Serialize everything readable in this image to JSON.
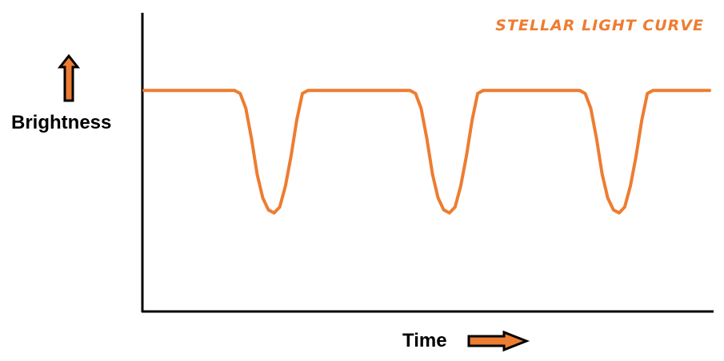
{
  "chart_data": {
    "type": "line",
    "title": "STELLAR LIGHT CURVE",
    "xlabel": "Time",
    "ylabel": "Brightness",
    "grid": false,
    "legend": "none",
    "series": [
      {
        "values": [
          [
            0,
            0.74
          ],
          [
            0.16,
            0.74
          ],
          [
            0.17,
            0.73
          ],
          [
            0.18,
            0.68
          ],
          [
            0.19,
            0.58
          ],
          [
            0.2,
            0.46
          ],
          [
            0.21,
            0.38
          ],
          [
            0.22,
            0.34
          ],
          [
            0.23,
            0.33
          ],
          [
            0.24,
            0.35
          ],
          [
            0.25,
            0.42
          ],
          [
            0.26,
            0.52
          ],
          [
            0.27,
            0.64
          ],
          [
            0.28,
            0.73
          ],
          [
            0.29,
            0.74
          ],
          [
            0.47,
            0.74
          ],
          [
            0.48,
            0.73
          ],
          [
            0.49,
            0.68
          ],
          [
            0.5,
            0.58
          ],
          [
            0.51,
            0.46
          ],
          [
            0.52,
            0.38
          ],
          [
            0.53,
            0.34
          ],
          [
            0.54,
            0.33
          ],
          [
            0.55,
            0.35
          ],
          [
            0.56,
            0.42
          ],
          [
            0.57,
            0.52
          ],
          [
            0.58,
            0.64
          ],
          [
            0.59,
            0.73
          ],
          [
            0.6,
            0.74
          ],
          [
            0.77,
            0.74
          ],
          [
            0.78,
            0.73
          ],
          [
            0.79,
            0.68
          ],
          [
            0.8,
            0.58
          ],
          [
            0.81,
            0.46
          ],
          [
            0.82,
            0.38
          ],
          [
            0.83,
            0.34
          ],
          [
            0.84,
            0.33
          ],
          [
            0.85,
            0.35
          ],
          [
            0.86,
            0.42
          ],
          [
            0.87,
            0.52
          ],
          [
            0.88,
            0.64
          ],
          [
            0.89,
            0.73
          ],
          [
            0.9,
            0.74
          ],
          [
            1.0,
            0.74
          ]
        ]
      }
    ]
  },
  "colors": {
    "curve": "#ed7d31",
    "title": "#ed7d31",
    "arrow_fill": "#ed7d31",
    "axis": "#000000"
  },
  "icons": {
    "y_arrow": "up-arrow-icon",
    "x_arrow": "right-arrow-icon"
  }
}
